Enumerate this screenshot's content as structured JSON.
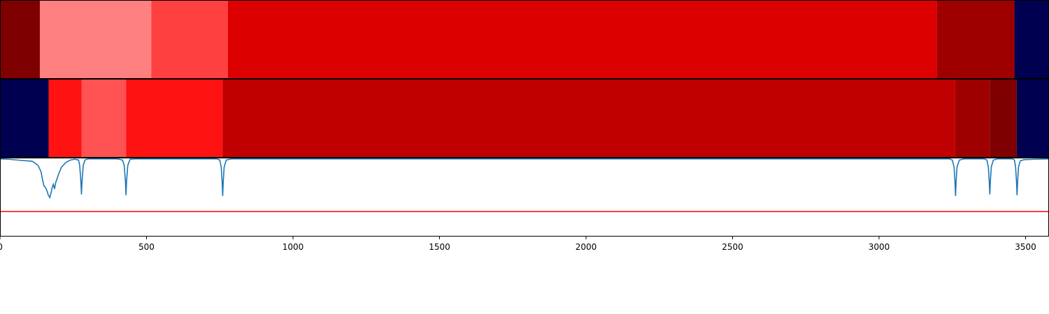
{
  "chart_data": {
    "type": "heatmap",
    "x_range": [
      0,
      3580
    ],
    "x_ticks": [
      {
        "value": 0,
        "label": "0"
      },
      {
        "value": 500,
        "label": "500"
      },
      {
        "value": 1000,
        "label": "1000"
      },
      {
        "value": 1500,
        "label": "1500"
      },
      {
        "value": 2000,
        "label": "2000"
      },
      {
        "value": 2500,
        "label": "2500"
      },
      {
        "value": 3000,
        "label": "3000"
      },
      {
        "value": 3500,
        "label": "3500"
      }
    ],
    "tracks": [
      {
        "name": "segment-track-1",
        "segments": [
          {
            "start": 0,
            "end": 136,
            "color": "#7f0000"
          },
          {
            "start": 136,
            "end": 516,
            "color": "#ff8080"
          },
          {
            "start": 516,
            "end": 778,
            "color": "#ff4040"
          },
          {
            "start": 778,
            "end": 3198,
            "color": "#dd0000"
          },
          {
            "start": 3198,
            "end": 3462,
            "color": "#9e0000"
          },
          {
            "start": 3462,
            "end": 3580,
            "color": "#000050"
          }
        ]
      },
      {
        "name": "segment-track-2",
        "segments": [
          {
            "start": 0,
            "end": 166,
            "color": "#000050"
          },
          {
            "start": 166,
            "end": 278,
            "color": "#ff1212"
          },
          {
            "start": 278,
            "end": 430,
            "color": "#ff5252"
          },
          {
            "start": 430,
            "end": 760,
            "color": "#ff1212"
          },
          {
            "start": 760,
            "end": 3260,
            "color": "#c00000"
          },
          {
            "start": 3260,
            "end": 3378,
            "color": "#9e0000"
          },
          {
            "start": 3378,
            "end": 3470,
            "color": "#7f0000"
          },
          {
            "start": 3470,
            "end": 3580,
            "color": "#000050"
          }
        ]
      }
    ],
    "signal": {
      "name": "signal-trace",
      "color": "#1f77b4",
      "y_range": [
        0,
        1
      ],
      "points": [
        [
          0,
          0.985
        ],
        [
          30,
          0.98
        ],
        [
          60,
          0.97
        ],
        [
          90,
          0.96
        ],
        [
          110,
          0.955
        ],
        [
          120,
          0.93
        ],
        [
          130,
          0.9
        ],
        [
          140,
          0.82
        ],
        [
          145,
          0.72
        ],
        [
          150,
          0.64
        ],
        [
          155,
          0.62
        ],
        [
          160,
          0.58
        ],
        [
          165,
          0.52
        ],
        [
          170,
          0.49
        ],
        [
          175,
          0.56
        ],
        [
          178,
          0.62
        ],
        [
          182,
          0.66
        ],
        [
          186,
          0.6
        ],
        [
          190,
          0.68
        ],
        [
          200,
          0.79
        ],
        [
          210,
          0.88
        ],
        [
          225,
          0.94
        ],
        [
          240,
          0.97
        ],
        [
          255,
          0.98
        ],
        [
          268,
          0.97
        ],
        [
          272,
          0.9
        ],
        [
          276,
          0.7
        ],
        [
          278,
          0.53
        ],
        [
          280,
          0.7
        ],
        [
          284,
          0.9
        ],
        [
          290,
          0.97
        ],
        [
          300,
          0.985
        ],
        [
          400,
          0.985
        ],
        [
          418,
          0.97
        ],
        [
          424,
          0.9
        ],
        [
          428,
          0.7
        ],
        [
          430,
          0.52
        ],
        [
          432,
          0.7
        ],
        [
          436,
          0.9
        ],
        [
          444,
          0.98
        ],
        [
          460,
          0.985
        ],
        [
          740,
          0.985
        ],
        [
          750,
          0.97
        ],
        [
          755,
          0.88
        ],
        [
          758,
          0.7
        ],
        [
          760,
          0.51
        ],
        [
          762,
          0.7
        ],
        [
          765,
          0.88
        ],
        [
          772,
          0.97
        ],
        [
          790,
          0.985
        ],
        [
          3240,
          0.985
        ],
        [
          3250,
          0.97
        ],
        [
          3256,
          0.88
        ],
        [
          3259,
          0.7
        ],
        [
          3261,
          0.51
        ],
        [
          3263,
          0.7
        ],
        [
          3266,
          0.88
        ],
        [
          3274,
          0.97
        ],
        [
          3290,
          0.985
        ],
        [
          3360,
          0.985
        ],
        [
          3368,
          0.97
        ],
        [
          3373,
          0.88
        ],
        [
          3376,
          0.7
        ],
        [
          3378,
          0.53
        ],
        [
          3380,
          0.7
        ],
        [
          3383,
          0.88
        ],
        [
          3390,
          0.97
        ],
        [
          3405,
          0.985
        ],
        [
          3455,
          0.985
        ],
        [
          3462,
          0.97
        ],
        [
          3466,
          0.88
        ],
        [
          3469,
          0.7
        ],
        [
          3471,
          0.52
        ],
        [
          3473,
          0.7
        ],
        [
          3476,
          0.88
        ],
        [
          3482,
          0.96
        ],
        [
          3495,
          0.975
        ],
        [
          3530,
          0.98
        ],
        [
          3580,
          0.985
        ]
      ]
    },
    "threshold": {
      "name": "threshold-line",
      "value": 0.31,
      "color": "#ff0000"
    }
  }
}
